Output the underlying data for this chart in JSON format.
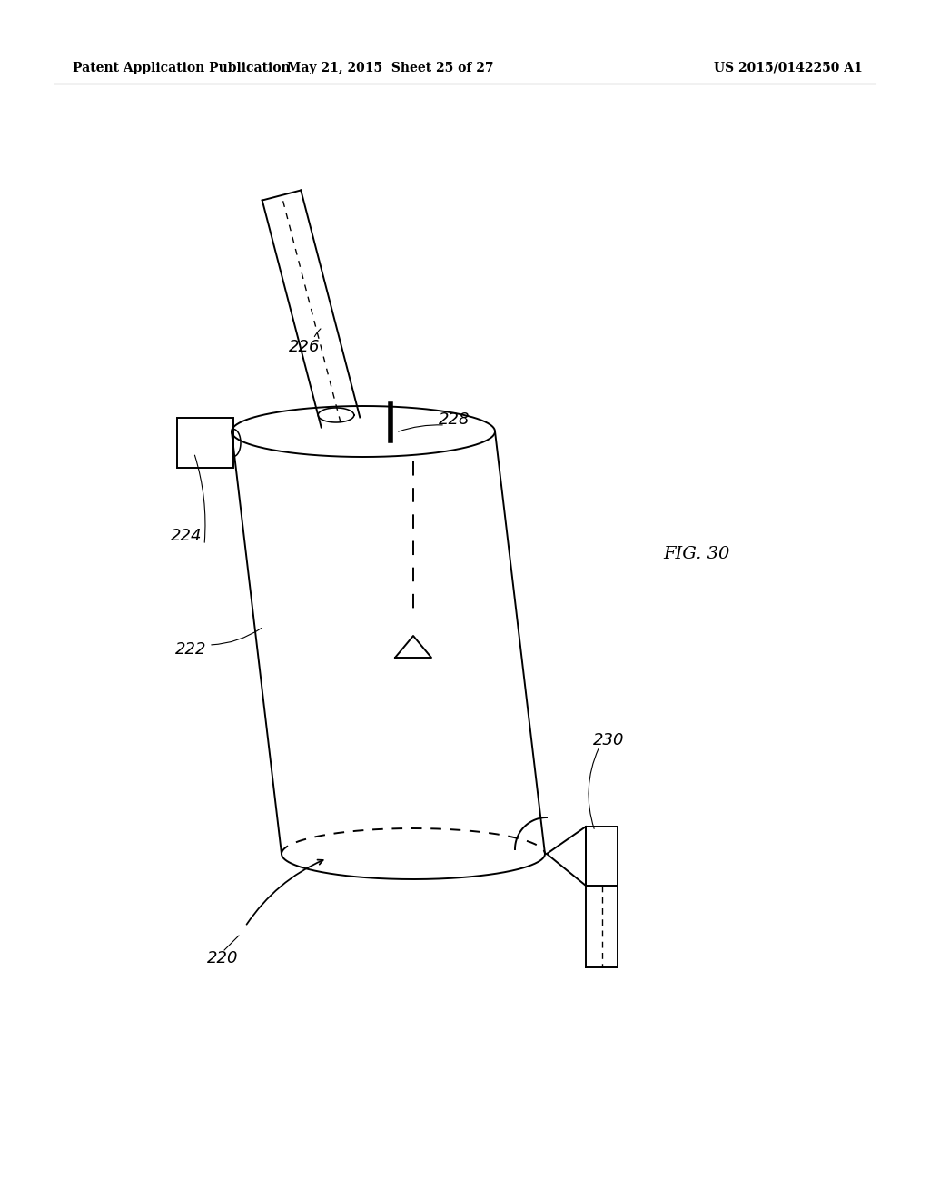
{
  "bg_color": "#ffffff",
  "header_left": "Patent Application Publication",
  "header_center": "May 21, 2015  Sheet 25 of 27",
  "header_right": "US 2015/0142250 A1",
  "fig_label": "FIG. 30"
}
